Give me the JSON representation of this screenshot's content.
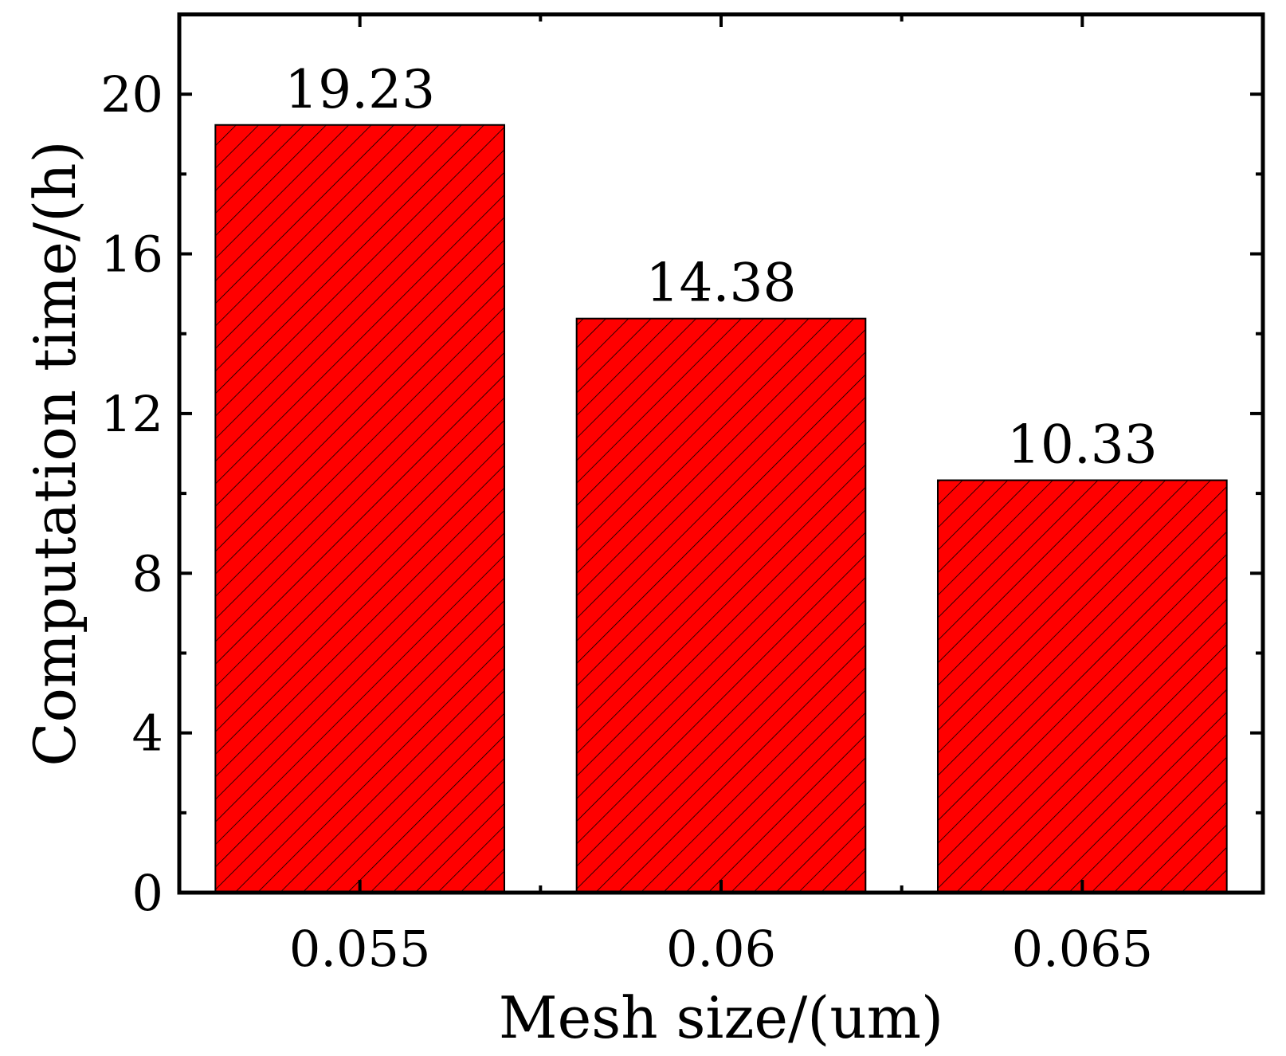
{
  "chart_data": {
    "type": "bar",
    "title": "",
    "xlabel": "Mesh size/(um)",
    "ylabel": "Computation time/(h)",
    "categories": [
      "0.055",
      "0.06",
      "0.065"
    ],
    "values": [
      19.23,
      14.38,
      10.33
    ],
    "data_labels": [
      "19.23",
      "14.38",
      "10.33"
    ],
    "ylim": [
      0,
      22
    ],
    "yticks": [
      0,
      4,
      8,
      12,
      16,
      20
    ],
    "ytick_labels": [
      "0",
      "4",
      "8",
      "12",
      "16",
      "20"
    ],
    "yminor_ticks": [
      2,
      6,
      10,
      14,
      18
    ],
    "bar_color": "#ff0000",
    "bar_pattern": "diagonal-hatch",
    "grid": false,
    "legend": "none"
  }
}
